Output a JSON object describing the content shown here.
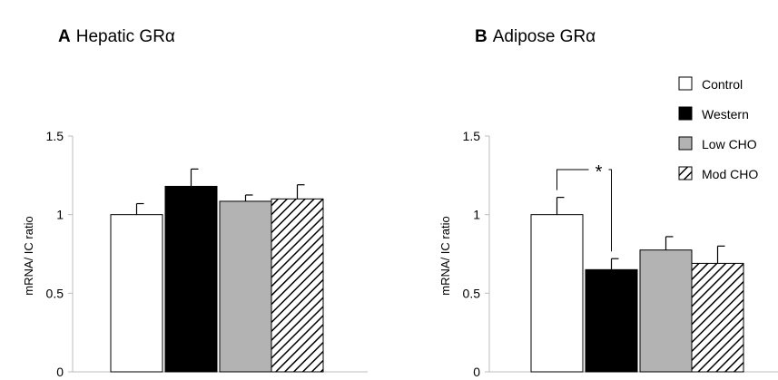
{
  "chart_data": [
    {
      "panel_letter": "A",
      "title": "Hepatic GRα",
      "type": "bar",
      "ylabel": "mRNA/ IC ratio",
      "ylim": [
        0,
        1.5
      ],
      "yticks": [
        "0",
        "0.5",
        "1",
        "1.5"
      ],
      "categories": [
        "Control",
        "Western",
        "Low CHO",
        "Mod CHO"
      ],
      "values": [
        1.0,
        1.18,
        1.085,
        1.1
      ],
      "errors": [
        0.07,
        0.11,
        0.04,
        0.09
      ],
      "grid": false
    },
    {
      "panel_letter": "B",
      "title": "Adipose GRα",
      "type": "bar",
      "ylabel": "mRNA/ IC ratio",
      "ylim": [
        0,
        1.5
      ],
      "yticks": [
        "0",
        "0.5",
        "1",
        "1.5"
      ],
      "categories": [
        "Control",
        "Western",
        "Low CHO",
        "Mod CHO"
      ],
      "values": [
        1.0,
        0.65,
        0.775,
        0.69
      ],
      "errors": [
        0.11,
        0.07,
        0.085,
        0.11
      ],
      "significance": {
        "between": [
          "Control",
          "Western"
        ],
        "label": "*"
      },
      "grid": false
    }
  ],
  "legend": {
    "placement": "top-right",
    "items": [
      {
        "label": "Control",
        "style": "white"
      },
      {
        "label": "Western",
        "style": "black"
      },
      {
        "label": "Low CHO",
        "style": "gray"
      },
      {
        "label": "Mod CHO",
        "style": "hatched"
      }
    ]
  },
  "colors": {
    "control": "#ffffff",
    "western": "#000000",
    "low_cho": "#b3b3b3",
    "mod_cho_hatch": "#000000"
  }
}
